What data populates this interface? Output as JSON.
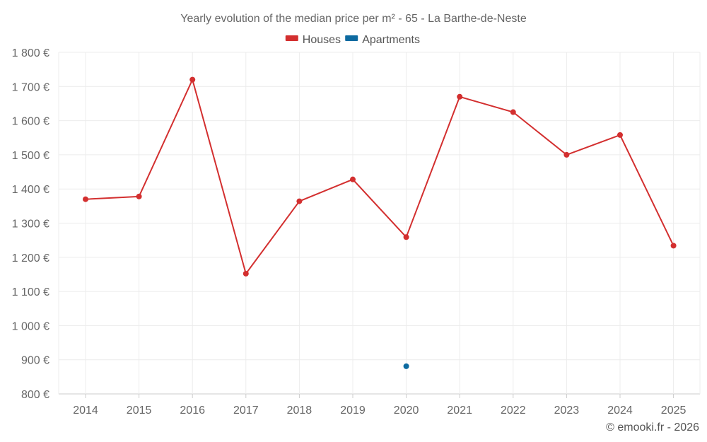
{
  "chart_data": {
    "type": "line",
    "title": "Yearly evolution of the median price per m² - 65 - La Barthe-de-Neste",
    "categories": [
      "2014",
      "2015",
      "2016",
      "2017",
      "2018",
      "2019",
      "2020",
      "2021",
      "2022",
      "2023",
      "2024",
      "2025"
    ],
    "series": [
      {
        "name": "Houses",
        "color": "#d32f2f",
        "values": [
          1370,
          1378,
          1720,
          1152,
          1364,
          1428,
          1259,
          1670,
          1625,
          1500,
          1558,
          1234
        ]
      },
      {
        "name": "Apartments",
        "color": "#0d6aa0",
        "values": [
          null,
          null,
          null,
          null,
          null,
          null,
          881,
          null,
          null,
          null,
          null,
          null
        ]
      }
    ],
    "ylim": [
      800,
      1800
    ],
    "yticks": [
      800,
      900,
      1000,
      1100,
      1200,
      1300,
      1400,
      1500,
      1600,
      1700,
      1800
    ],
    "ytick_labels": [
      "800 €",
      "900 €",
      "1 000 €",
      "1 100 €",
      "1 200 €",
      "1 300 €",
      "1 400 €",
      "1 500 €",
      "1 600 €",
      "1 700 €",
      "1 800 €"
    ],
    "legend_position": "top-center",
    "grid": true
  },
  "credit": "© emooki.fr - 2026"
}
